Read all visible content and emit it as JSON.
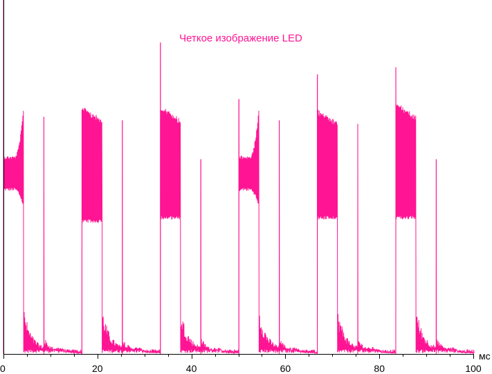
{
  "chart_data": {
    "type": "line",
    "title": "Четкое изображение LED",
    "xlabel": "мс",
    "ylabel": "",
    "xlim": [
      0,
      100
    ],
    "ylim": [
      0,
      1
    ],
    "x_ticks": [
      0,
      20,
      40,
      60,
      80,
      100
    ],
    "x_tick_labels": [
      "0",
      "20",
      "40",
      "60",
      "80",
      "100"
    ],
    "grid": false,
    "colors": {
      "series": "#ff1493",
      "axis": "#000000"
    },
    "series": [
      {
        "name": "",
        "period_ms": 16.7,
        "frames": [
          {
            "start": 0.0,
            "state": "grey",
            "lo": 0.46,
            "hi": 0.56,
            "end_hi": 0.7,
            "end_lo": 0.41,
            "spike": 1.0
          },
          {
            "start": 16.7,
            "state": "white",
            "lo": 0.37,
            "hi": 0.7,
            "spike": 0.69
          },
          {
            "start": 33.4,
            "state": "white",
            "lo": 0.38,
            "hi": 0.7,
            "spike": 0.88
          },
          {
            "start": 50.1,
            "state": "grey",
            "lo": 0.46,
            "hi": 0.56,
            "end_hi": 0.7,
            "end_lo": 0.41,
            "spike": 0.72
          },
          {
            "start": 66.8,
            "state": "white",
            "lo": 0.38,
            "hi": 0.69,
            "spike": 0.79
          },
          {
            "start": 83.5,
            "state": "white",
            "lo": 0.38,
            "hi": 0.71,
            "spike": 0.81
          }
        ],
        "secondary_pulses": [
          {
            "x": 8.6,
            "peak": 0.67
          },
          {
            "x": 25.3,
            "peak": 0.66
          },
          {
            "x": 42.0,
            "peak": 0.55
          },
          {
            "x": 58.7,
            "peak": 0.66
          },
          {
            "x": 75.4,
            "peak": 0.65
          },
          {
            "x": 92.1,
            "peak": 0.55
          }
        ]
      }
    ]
  }
}
